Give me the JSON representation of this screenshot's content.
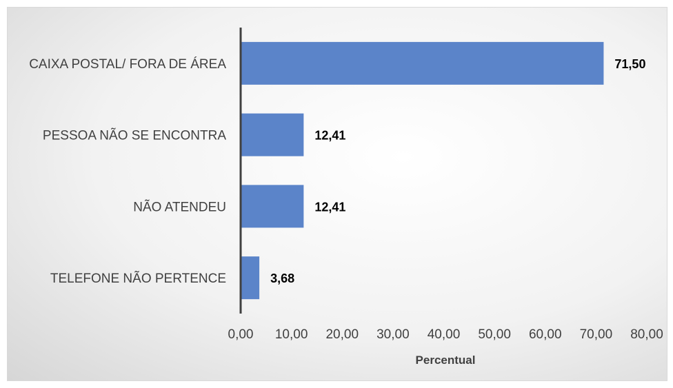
{
  "chart_data": {
    "type": "bar",
    "orientation": "horizontal",
    "categories": [
      "CAIXA POSTAL/ FORA DE ÁREA",
      "PESSOA NÃO SE ENCONTRA",
      "NÃO ATENDEU",
      "TELEFONE NÃO PERTENCE"
    ],
    "values": [
      71.5,
      12.41,
      12.41,
      3.68
    ],
    "value_labels": [
      "71,50",
      "12,41",
      "12,41",
      "3,68"
    ],
    "xlabel": "Percentual",
    "ylabel": "",
    "xlim": [
      0,
      80
    ],
    "x_ticks": [
      0,
      10,
      20,
      30,
      40,
      50,
      60,
      70,
      80
    ],
    "x_tick_labels": [
      "0,00",
      "10,00",
      "20,00",
      "30,00",
      "40,00",
      "50,00",
      "60,00",
      "70,00",
      "80,00"
    ],
    "grid": false,
    "legend": "none",
    "bar_color": "#5b84c9",
    "axis_color": "#404040"
  }
}
